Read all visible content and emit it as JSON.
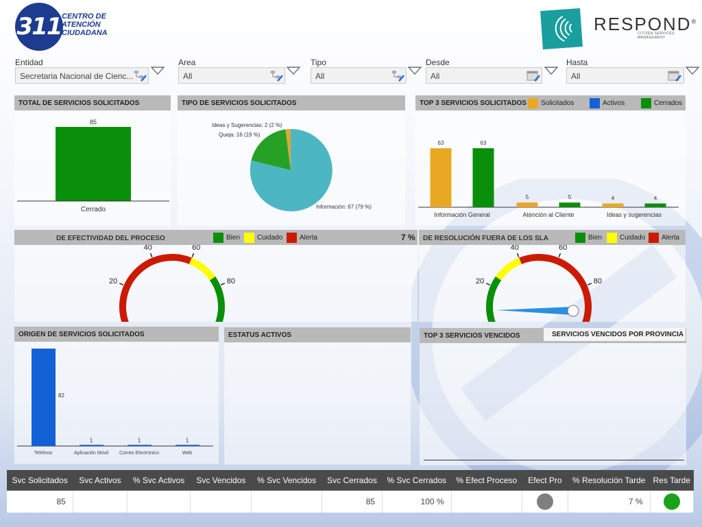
{
  "header": {
    "logo_left_number": "311",
    "logo_left_text": [
      "CENTRO DE",
      "ATENCIÓN",
      "CIUDADANA"
    ],
    "logo_right_text": "RESPOND",
    "logo_right_mark": "®",
    "logo_right_sub": "CITIZEN SERVICES MANAGEMENT"
  },
  "filters": [
    {
      "label": "Entidad",
      "value": "Secretaria Nacional de Cienc...",
      "icon": "hierarchy-edit-icon"
    },
    {
      "label": "Area",
      "value": "All",
      "icon": "hierarchy-edit-icon"
    },
    {
      "label": "Tipo",
      "value": "All",
      "icon": "hierarchy-edit-icon"
    },
    {
      "label": "Desde",
      "value": "All",
      "icon": "calendar-edit-icon"
    },
    {
      "label": "Hasta",
      "value": "All",
      "icon": "calendar-edit-icon"
    }
  ],
  "panels": {
    "total": {
      "title": "TOTAL DE SERVICIOS SOLICITADOS"
    },
    "tipo": {
      "title": "TIPO DE SERVICIOS SOLICITADOS"
    },
    "top3": {
      "title": "TOP 3 SERVICIOS SOLICITADOS",
      "legend": [
        "Solicitados",
        "Activos",
        "Cerrados"
      ]
    },
    "efectividad": {
      "title": "DE EFECTIVIDAD DEL PROCESO",
      "legend": [
        "Bien",
        "Cuidado",
        "Alerta"
      ]
    },
    "resolucion": {
      "prefix": "7 %",
      "title": "DE RESOLUCIÓN FUERA DE LOS SLA",
      "legend": [
        "Bien",
        "Cuidado",
        "Alerta"
      ]
    },
    "origen": {
      "title": "ORIGEN DE SERVICIOS SOLICITADOS"
    },
    "estatus": {
      "title": "ESTATUS ACTIVOS"
    },
    "vencidos": {
      "title": "TOP 3 SERVICIOS VENCIDOS",
      "tab": "SERVICIOS VENCIDOS POR PROVINCIA"
    }
  },
  "colors": {
    "green": "#0a8f0a",
    "blue": "#1262d6",
    "orange": "#e8a823",
    "yellow": "#ffff00",
    "red": "#cc1a00",
    "teal": "#4cb7c3",
    "pie_green": "#26a126",
    "pie_gold": "#e0a72f",
    "panel_header": "#b9b9b9",
    "table_header": "#4a4a4a"
  },
  "chart_data": [
    {
      "type": "bar",
      "title": "TOTAL DE SERVICIOS SOLICITADOS",
      "categories": [
        "Cerrado"
      ],
      "values": [
        85
      ],
      "ylim": [
        0,
        100
      ]
    },
    {
      "type": "pie",
      "title": "TIPO DE SERVICIOS SOLICITADOS",
      "slices": [
        {
          "label": "Información: 67 (79 %)",
          "value": 67
        },
        {
          "label": "Queja: 16 (19 %)",
          "value": 16
        },
        {
          "label": "Ideas y Sugerencias: 2 (2 %)",
          "value": 2
        }
      ]
    },
    {
      "type": "bar",
      "title": "TOP 3 SERVICIOS SOLICITADOS",
      "categories": [
        "Información General",
        "Atención al Cliente",
        "Ideas y sugerencias"
      ],
      "series": [
        {
          "name": "Solicitados",
          "values": [
            63,
            5,
            4
          ]
        },
        {
          "name": "Activos",
          "values": [
            0,
            0,
            0
          ]
        },
        {
          "name": "Cerrados",
          "values": [
            63,
            5,
            4
          ]
        }
      ],
      "ylim": [
        0,
        75
      ]
    },
    {
      "type": "gauge",
      "title": "DE EFECTIVIDAD DEL PROCESO",
      "ticks": [
        "0",
        "20",
        "40",
        "60",
        "80",
        "100"
      ],
      "bands": [
        {
          "from": 0,
          "to": 60,
          "color": "Alerta"
        },
        {
          "from": 60,
          "to": 75,
          "color": "Cuidado"
        },
        {
          "from": 75,
          "to": 100,
          "color": "Bien"
        }
      ]
    },
    {
      "type": "gauge",
      "title": "DE RESOLUCIÓN FUERA DE LOS SLA",
      "value": 7,
      "ticks": [
        "0",
        "20",
        "40",
        "60",
        "80",
        "100"
      ],
      "bands": [
        {
          "from": 0,
          "to": 25,
          "color": "Bien"
        },
        {
          "from": 25,
          "to": 40,
          "color": "Cuidado"
        },
        {
          "from": 40,
          "to": 100,
          "color": "Alerta"
        }
      ]
    },
    {
      "type": "bar",
      "title": "ORIGEN DE SERVICIOS SOLICITADOS",
      "categories": [
        "Teléfono",
        "Aplicación Móvil",
        "Correo Electrónico",
        "Web"
      ],
      "values": [
        82,
        1,
        1,
        1
      ],
      "ylim": [
        0,
        85
      ]
    }
  ],
  "table": {
    "headers": [
      "Svc Solicitados",
      "Svc Activos",
      "% Svc Activos",
      "Svc Vencidos",
      "% Svc Vencidos",
      "Svc Cerrados",
      "% Svc Cerrados",
      "% Efect Proceso",
      "Efect Pro",
      "% Resolución Tarde",
      "Res Tarde"
    ],
    "row": [
      "85",
      "",
      "",
      "",
      "",
      "85",
      "100 %",
      "",
      "",
      "7 %",
      ""
    ],
    "efect_pro_status": "#808080",
    "res_tarde_status": "#1aa31a"
  }
}
